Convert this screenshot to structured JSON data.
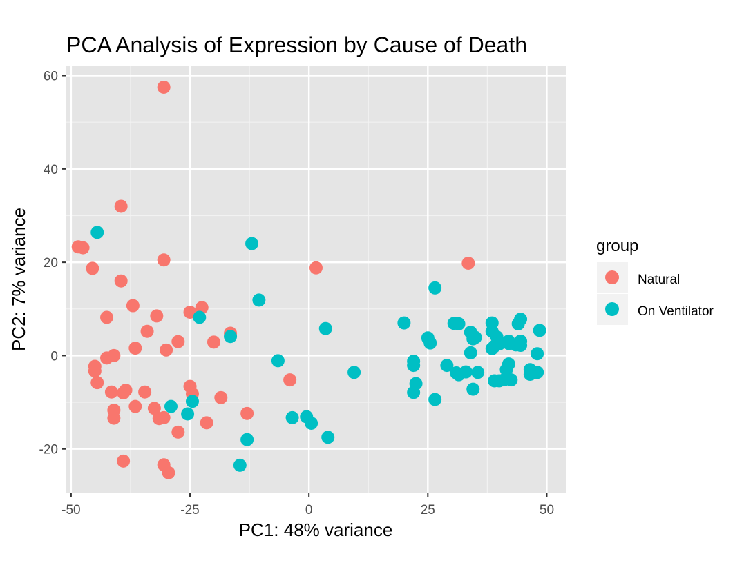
{
  "colors": {
    "panel_bg": "#E5E5E5",
    "grid_major": "#FFFFFF",
    "grid_minor": "#F2F2F2",
    "natural": "#F8766D",
    "on_ventilator": "#00BFC4",
    "text": "#000000",
    "tick_text": "#4D4D4D"
  },
  "chart_data": {
    "type": "scatter",
    "title": "PCA Analysis of Expression by Cause of Death",
    "xlabel": "PC1: 48% variance",
    "ylabel": "PC2: 7% variance",
    "xlim": [
      -51,
      54
    ],
    "ylim": [
      -29.5,
      62
    ],
    "x_ticks": [
      -50,
      -25,
      0,
      25,
      50
    ],
    "x_tick_labels": [
      "-50",
      "-25",
      "0",
      "25",
      "50"
    ],
    "y_ticks": [
      -20,
      0,
      20,
      40,
      60
    ],
    "y_tick_labels": [
      "-20",
      "0",
      "20",
      "40",
      "60"
    ],
    "grid": true,
    "legend": {
      "title": "group",
      "position": "right",
      "entries": [
        "Natural",
        "On Ventilator"
      ]
    },
    "series": [
      {
        "name": "Natural",
        "color": "#F8766D",
        "points": [
          [
            -30.5,
            57.5
          ],
          [
            -39.5,
            32.0
          ],
          [
            -48.5,
            23.3
          ],
          [
            -47.5,
            23.1
          ],
          [
            -45.5,
            18.7
          ],
          [
            -30.5,
            20.5
          ],
          [
            -39.5,
            16.0
          ],
          [
            -37.0,
            10.7
          ],
          [
            -42.5,
            8.2
          ],
          [
            -32.0,
            8.5
          ],
          [
            -25.0,
            9.3
          ],
          [
            -22.5,
            10.3
          ],
          [
            -16.5,
            4.8
          ],
          [
            -34.0,
            5.2
          ],
          [
            -27.5,
            3.0
          ],
          [
            -20.0,
            2.9
          ],
          [
            -36.5,
            1.6
          ],
          [
            -30.0,
            1.2
          ],
          [
            -41.0,
            0.0
          ],
          [
            -42.5,
            -0.5
          ],
          [
            -45.0,
            -2.3
          ],
          [
            -45.0,
            -3.3
          ],
          [
            -44.5,
            -5.8
          ],
          [
            -41.5,
            -7.8
          ],
          [
            -39.0,
            -8.0
          ],
          [
            -38.5,
            -7.4
          ],
          [
            -34.5,
            -7.8
          ],
          [
            -25.0,
            -6.6
          ],
          [
            -24.5,
            -8.2
          ],
          [
            -18.5,
            -9.0
          ],
          [
            -36.5,
            -10.9
          ],
          [
            -32.5,
            -11.3
          ],
          [
            -41.0,
            -11.7
          ],
          [
            -41.0,
            -13.4
          ],
          [
            -31.5,
            -13.5
          ],
          [
            -30.5,
            -13.3
          ],
          [
            -21.5,
            -14.4
          ],
          [
            -13.0,
            -12.4
          ],
          [
            -27.5,
            -16.4
          ],
          [
            -39.0,
            -22.6
          ],
          [
            -30.5,
            -23.4
          ],
          [
            -29.5,
            -25.1
          ],
          [
            1.5,
            18.8
          ],
          [
            33.5,
            19.8
          ],
          [
            -4.0,
            -5.2
          ]
        ]
      },
      {
        "name": "On Ventilator",
        "color": "#00BFC4",
        "points": [
          [
            -44.5,
            26.4
          ],
          [
            -12.0,
            24.0
          ],
          [
            -10.5,
            11.9
          ],
          [
            -23.0,
            8.2
          ],
          [
            -16.5,
            4.1
          ],
          [
            3.5,
            5.8
          ],
          [
            -6.5,
            -1.1
          ],
          [
            9.5,
            -3.6
          ],
          [
            -29.0,
            -10.9
          ],
          [
            -24.5,
            -9.8
          ],
          [
            -25.5,
            -12.5
          ],
          [
            -3.5,
            -13.3
          ],
          [
            -0.5,
            -13.1
          ],
          [
            0.5,
            -14.5
          ],
          [
            4.0,
            -17.5
          ],
          [
            -13.0,
            -18.0
          ],
          [
            -14.5,
            -23.5
          ],
          [
            20.0,
            7.0
          ],
          [
            26.5,
            14.5
          ],
          [
            25.0,
            3.8
          ],
          [
            25.5,
            2.7
          ],
          [
            22.0,
            -1.2
          ],
          [
            22.0,
            -2.1
          ],
          [
            22.5,
            -6.0
          ],
          [
            22.0,
            -7.9
          ],
          [
            26.5,
            -9.4
          ],
          [
            29.0,
            -2.1
          ],
          [
            31.5,
            -4.1
          ],
          [
            31.0,
            -3.7
          ],
          [
            30.5,
            6.9
          ],
          [
            31.5,
            6.8
          ],
          [
            34.0,
            5.0
          ],
          [
            34.5,
            3.6
          ],
          [
            35.0,
            3.9
          ],
          [
            34.0,
            0.6
          ],
          [
            35.5,
            -3.6
          ],
          [
            34.5,
            -7.2
          ],
          [
            38.5,
            7.0
          ],
          [
            38.5,
            5.2
          ],
          [
            39.5,
            4.0
          ],
          [
            39.0,
            2.0
          ],
          [
            38.5,
            1.5
          ],
          [
            40.0,
            2.5
          ],
          [
            42.0,
            3.1
          ],
          [
            42.0,
            2.6
          ],
          [
            43.5,
            2.3
          ],
          [
            44.5,
            7.8
          ],
          [
            44.0,
            6.8
          ],
          [
            44.5,
            3.1
          ],
          [
            44.5,
            2.2
          ],
          [
            48.5,
            5.4
          ],
          [
            48.0,
            0.4
          ],
          [
            42.0,
            -1.8
          ],
          [
            41.5,
            -3.0
          ],
          [
            46.5,
            -3.0
          ],
          [
            47.0,
            -3.6
          ],
          [
            48.0,
            -3.6
          ],
          [
            46.5,
            -4.0
          ],
          [
            39.0,
            -5.4
          ],
          [
            40.0,
            -5.4
          ],
          [
            41.0,
            -5.2
          ],
          [
            42.5,
            -5.2
          ],
          [
            33.0,
            -3.5
          ]
        ]
      }
    ]
  }
}
